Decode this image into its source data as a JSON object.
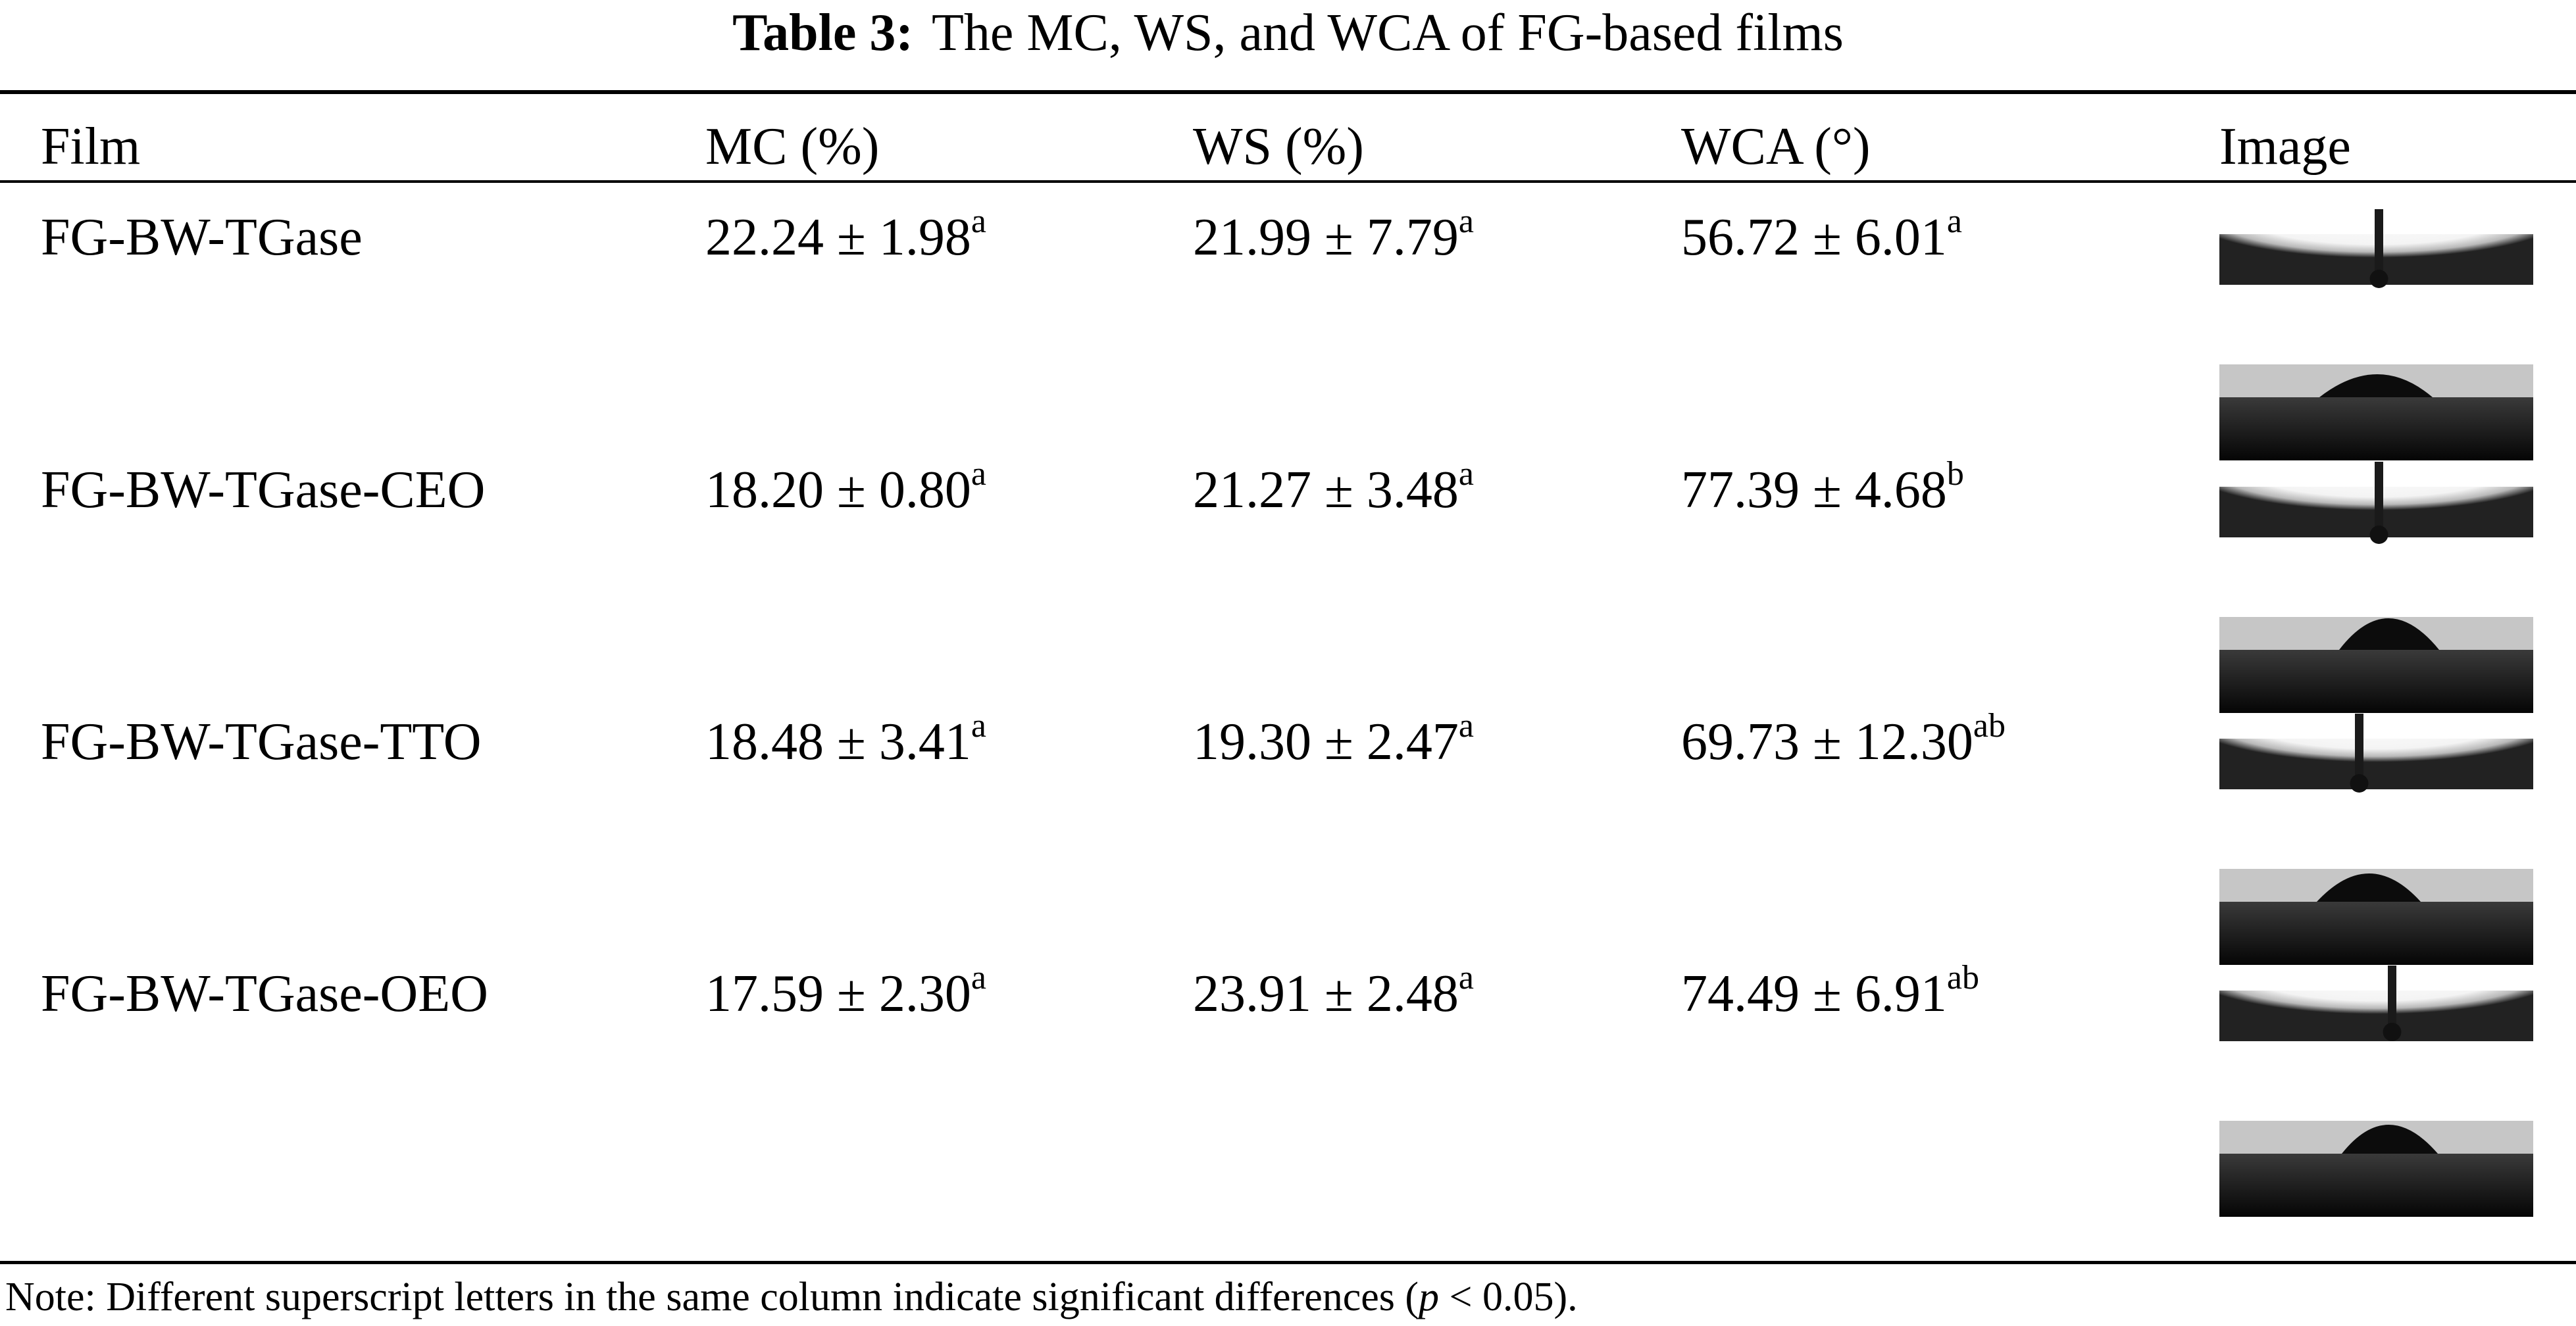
{
  "table": {
    "caption_label": "Table 3:",
    "caption_text": "The MC, WS, and WCA of FG-based films",
    "headers": [
      "Film",
      "MC (%)",
      "WS (%)",
      "WCA (°)",
      "Image"
    ],
    "rows": [
      {
        "film": "FG-BW-TGase",
        "mc": "22.24 ± 1.98",
        "mc_sup": "a",
        "ws": "21.99 ± 7.79",
        "ws_sup": "a",
        "wca": "56.72 ± 6.01",
        "wca_sup": "a"
      },
      {
        "film": "FG-BW-TGase-CEO",
        "mc": "18.20 ± 0.80",
        "mc_sup": "a",
        "ws": "21.27 ± 3.48",
        "ws_sup": "a",
        "wca": "77.39 ± 4.68",
        "wca_sup": "b"
      },
      {
        "film": "FG-BW-TGase-TTO",
        "mc": "18.48 ± 3.41",
        "mc_sup": "a",
        "ws": "19.30 ± 2.47",
        "ws_sup": "a",
        "wca": "69.73 ± 12.30",
        "wca_sup": "ab"
      },
      {
        "film": "FG-BW-TGase-OEO",
        "mc": "17.59 ± 2.30",
        "mc_sup": "a",
        "ws": "23.91 ± 2.48",
        "ws_sup": "a",
        "wca": "74.49 ± 6.91",
        "wca_sup": "ab"
      }
    ],
    "note": {
      "prefix": "Note: Different superscript letters in the same column indicate significant differences (",
      "italic": "p",
      "suffix": " < 0.05)."
    }
  }
}
